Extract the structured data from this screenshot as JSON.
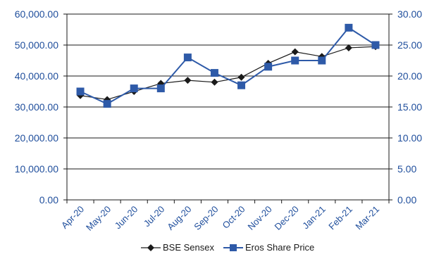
{
  "chart_data": {
    "type": "line",
    "title": "",
    "xlabel": "",
    "ylabel": "",
    "categories": [
      "Apr-20",
      "May-20",
      "Jun-20",
      "Jul-20",
      "Aug-20",
      "Sep-20",
      "Oct-20",
      "Nov-20",
      "Dec-20",
      "Jan-21",
      "Feb-21",
      "Mar-21"
    ],
    "y_left": {
      "range": [
        0,
        60000
      ],
      "ticks": [
        0,
        10000,
        20000,
        30000,
        40000,
        50000,
        60000
      ],
      "tick_labels": [
        "0.00",
        "10,000.00",
        "20,000.00",
        "30,000.00",
        "40,000.00",
        "50,000.00",
        "60,000.00"
      ]
    },
    "y_right": {
      "range": [
        0,
        30
      ],
      "ticks": [
        0,
        5,
        10,
        15,
        20,
        25,
        30
      ],
      "tick_labels": [
        "0.00",
        "5.00",
        "10.00",
        "15.00",
        "20.00",
        "25.00",
        "30.00"
      ]
    },
    "grid": "horizontal",
    "legend_position": "bottom",
    "series": [
      {
        "name": "BSE Sensex",
        "axis": "left",
        "marker": "diamond",
        "color": "#1a1a1a",
        "values": [
          33700,
          32400,
          35000,
          37600,
          38600,
          38000,
          39600,
          44100,
          47800,
          46300,
          49100,
          49500
        ]
      },
      {
        "name": "Eros Share Price",
        "axis": "right",
        "marker": "square",
        "color": "#2e5aa8",
        "values": [
          17.5,
          15.5,
          18.0,
          18.0,
          23.0,
          20.5,
          18.5,
          21.5,
          22.5,
          22.5,
          27.8,
          25.0
        ]
      }
    ],
    "colors": {
      "axis_tick_text": "#1f4e9c",
      "gridline": "#1a1a1a",
      "axis_line": "#1a1a1a"
    }
  }
}
